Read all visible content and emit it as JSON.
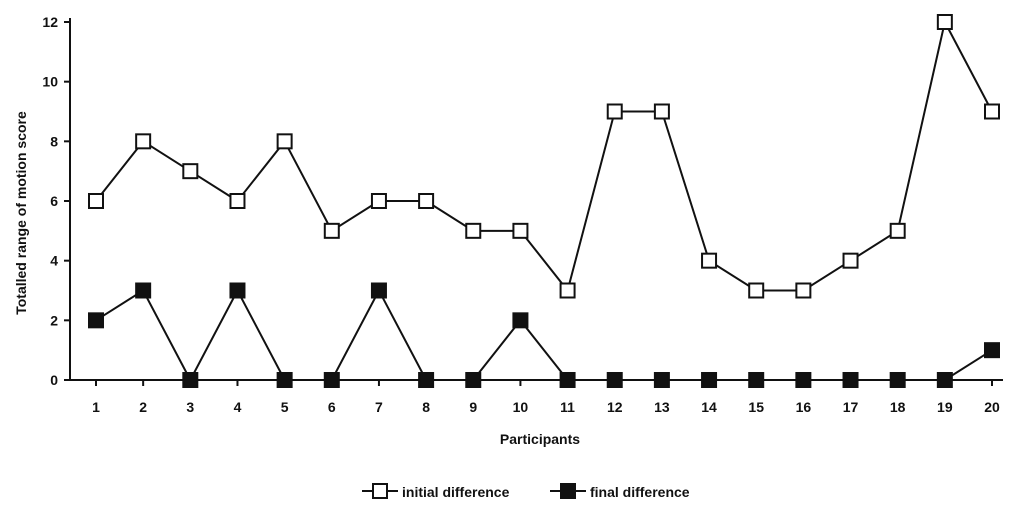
{
  "chart_data": {
    "type": "line",
    "title": "",
    "xlabel": "Participants",
    "ylabel": "Totalled range of motion score",
    "categories": [
      "1",
      "2",
      "3",
      "4",
      "5",
      "6",
      "7",
      "8",
      "9",
      "10",
      "11",
      "12",
      "13",
      "14",
      "15",
      "16",
      "17",
      "18",
      "19",
      "20"
    ],
    "ylim": [
      0,
      12
    ],
    "yticks": [
      "0",
      "2",
      "4",
      "6",
      "8",
      "10",
      "12"
    ],
    "grid": false,
    "legend_position": "bottom-center",
    "series": [
      {
        "name": "initial difference",
        "marker": "hollow-square",
        "color": "#111111",
        "values": [
          6,
          8,
          7,
          6,
          8,
          5,
          6,
          6,
          5,
          5,
          3,
          9,
          9,
          4,
          3,
          3,
          4,
          5,
          12,
          9
        ]
      },
      {
        "name": "final difference",
        "marker": "filled-square",
        "color": "#111111",
        "values": [
          2,
          3,
          0,
          3,
          0,
          0,
          3,
          0,
          0,
          2,
          0,
          0,
          0,
          0,
          0,
          0,
          0,
          0,
          0,
          1
        ]
      }
    ]
  }
}
